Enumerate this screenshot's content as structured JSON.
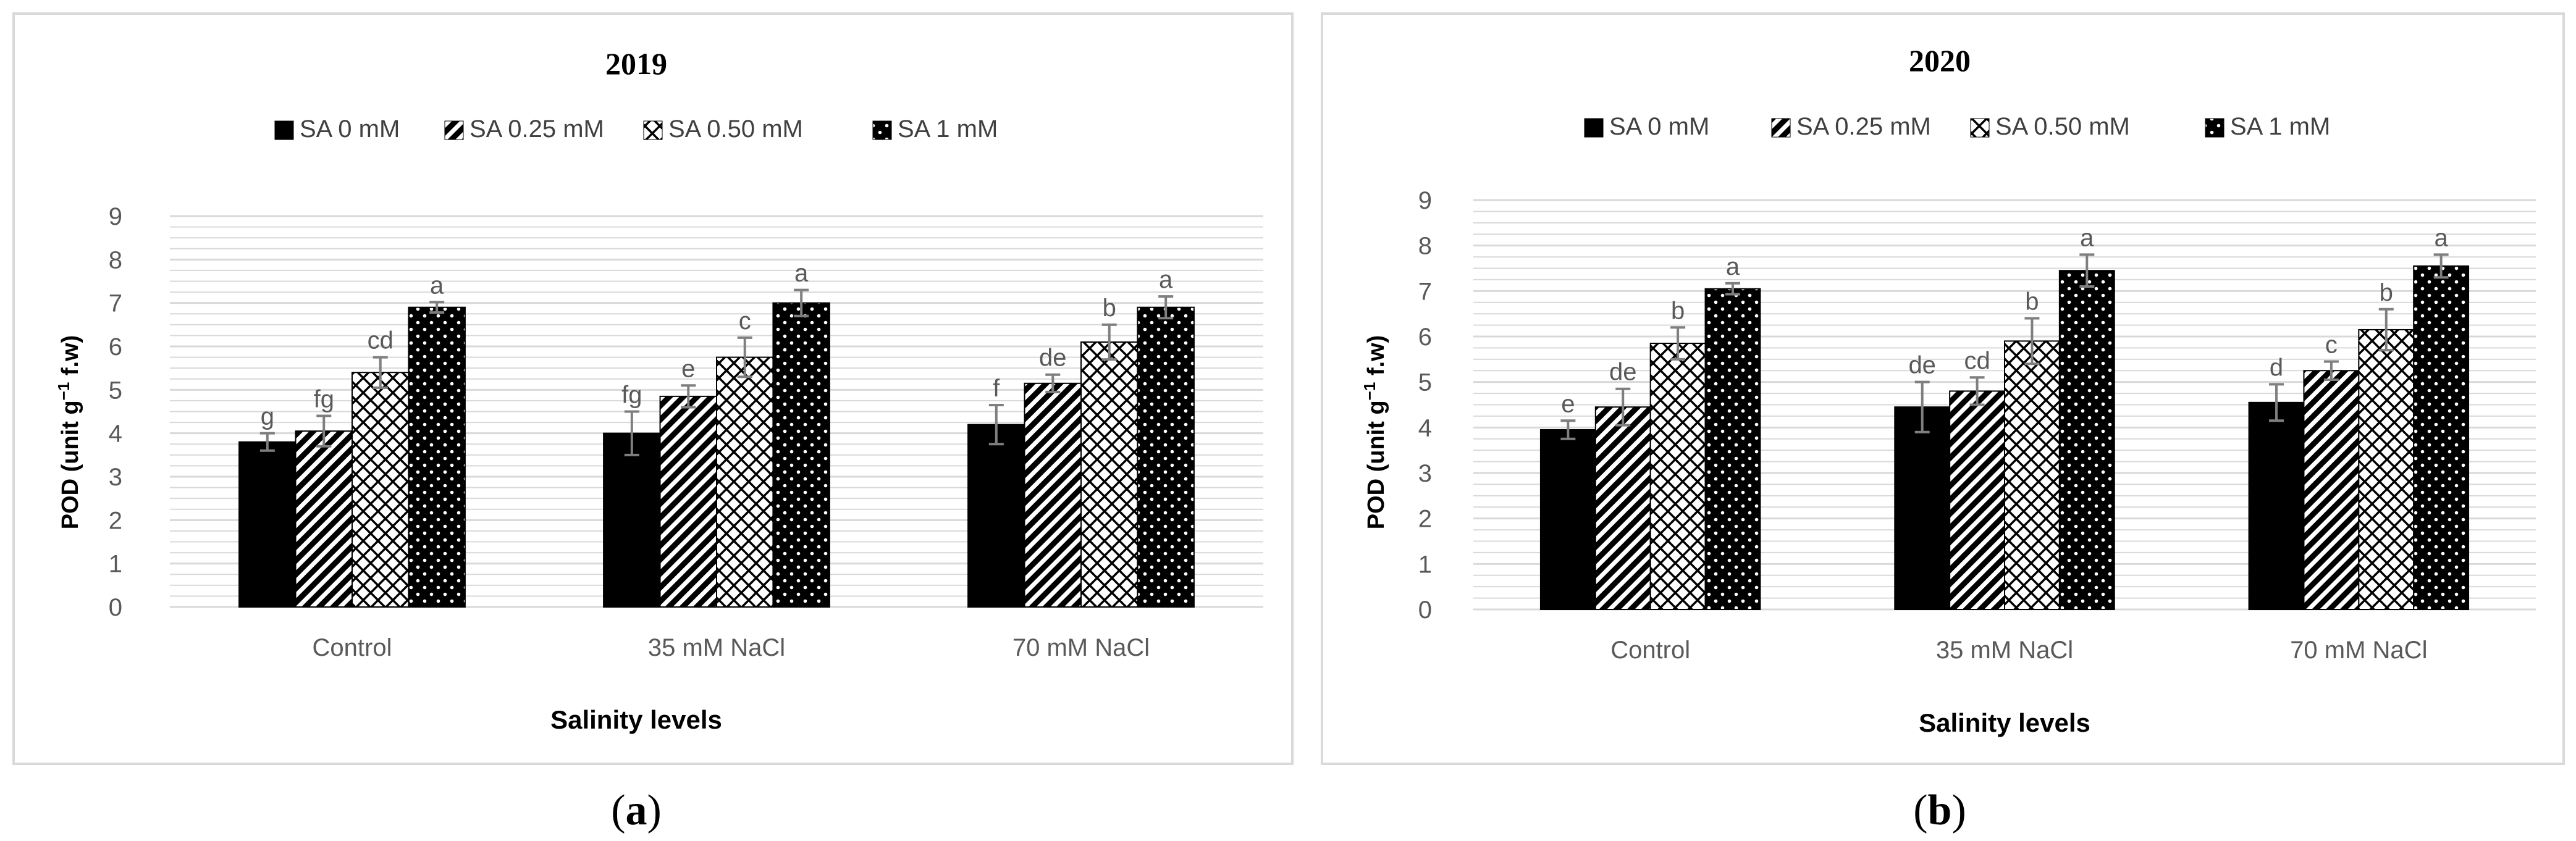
{
  "chart_data": [
    {
      "type": "bar",
      "title": "2019",
      "caption_letter": "a",
      "xlabel": "Salinity levels",
      "ylabel_main": "POD (unit g",
      "ylabel_sup": "−1",
      "ylabel_tail": " f.w)",
      "ylim": [
        0,
        9
      ],
      "yticks": [
        "0",
        "1",
        "2",
        "3",
        "4",
        "5",
        "6",
        "7",
        "8",
        "9"
      ],
      "categories": [
        "Control",
        "35 mM NaCl",
        "70 mM NaCl"
      ],
      "series": [
        {
          "name": "SA 0 mM",
          "pattern": "solid",
          "values": [
            3.8,
            4.0,
            4.2
          ],
          "errors": [
            0.2,
            0.5,
            0.45
          ],
          "letters": [
            "g",
            "fg",
            "f"
          ]
        },
        {
          "name": "SA 0.25 mM",
          "pattern": "diag",
          "values": [
            4.05,
            4.85,
            5.15
          ],
          "errors": [
            0.35,
            0.25,
            0.2
          ],
          "letters": [
            "fg",
            "e",
            "de"
          ]
        },
        {
          "name": "SA 0.50 mM",
          "pattern": "cross",
          "values": [
            5.4,
            5.75,
            6.1
          ],
          "errors": [
            0.35,
            0.45,
            0.4
          ],
          "letters": [
            "cd",
            "c",
            "b"
          ]
        },
        {
          "name": "SA 1 mM",
          "pattern": "dots",
          "values": [
            6.9,
            7.0,
            6.9
          ],
          "errors": [
            0.12,
            0.3,
            0.25
          ],
          "letters": [
            "a",
            "a",
            "a"
          ]
        }
      ]
    },
    {
      "type": "bar",
      "title": "2020",
      "caption_letter": "b",
      "xlabel": "Salinity levels",
      "ylabel_main": "POD (unit g",
      "ylabel_sup": "−1",
      "ylabel_tail": " f.w)",
      "ylim": [
        0,
        9
      ],
      "yticks": [
        "0",
        "1",
        "2",
        "3",
        "4",
        "5",
        "6",
        "7",
        "8",
        "9"
      ],
      "categories": [
        "Control",
        "35 mM NaCl",
        "70 mM NaCl"
      ],
      "series": [
        {
          "name": "SA 0 mM",
          "pattern": "solid",
          "values": [
            3.95,
            4.45,
            4.55
          ],
          "errors": [
            0.2,
            0.55,
            0.4
          ],
          "letters": [
            "e",
            "de",
            "d"
          ]
        },
        {
          "name": "SA 0.25 mM",
          "pattern": "diag",
          "values": [
            4.45,
            4.8,
            5.25
          ],
          "errors": [
            0.4,
            0.3,
            0.2
          ],
          "letters": [
            "de",
            "cd",
            "c"
          ]
        },
        {
          "name": "SA 0.50 mM",
          "pattern": "cross",
          "values": [
            5.85,
            5.9,
            6.15
          ],
          "errors": [
            0.35,
            0.5,
            0.45
          ],
          "letters": [
            "b",
            "b",
            "b"
          ]
        },
        {
          "name": "SA 1 mM",
          "pattern": "dots",
          "values": [
            7.05,
            7.45,
            7.55
          ],
          "errors": [
            0.12,
            0.35,
            0.25
          ],
          "letters": [
            "a",
            "a",
            "a"
          ]
        }
      ]
    }
  ],
  "colors": {
    "bar": "#000000",
    "axis_text": "#595959",
    "grid": "#d9d9d9",
    "frame": "#d9d9d9",
    "error": "#7f7f7f"
  }
}
